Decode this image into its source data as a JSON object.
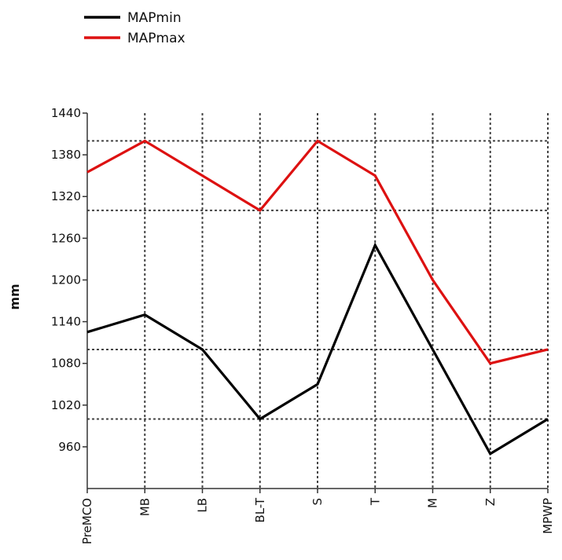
{
  "chart_data": {
    "type": "line",
    "title": "",
    "xlabel": "",
    "ylabel": "mm",
    "categories": [
      "PreMCO",
      "MB",
      "LB",
      "BL-T",
      "S",
      "T",
      "M",
      "Z",
      "MPWP"
    ],
    "ylim": [
      900,
      1440
    ],
    "yticks": [
      960,
      1020,
      1080,
      1140,
      1200,
      1260,
      1320,
      1380,
      1440
    ],
    "major_gridlines_y": [
      1000,
      1100,
      1300,
      1400
    ],
    "grid": true,
    "legend_position": "top-left",
    "series": [
      {
        "name": "MAPmin",
        "color": "#000000",
        "values": [
          1125,
          1150,
          1100,
          1000,
          1050,
          1250,
          1100,
          950,
          1000
        ]
      },
      {
        "name": "MAPmax",
        "color": "#dd1111",
        "values": [
          1355,
          1400,
          1350,
          1300,
          1400,
          1350,
          1200,
          1080,
          1100
        ]
      }
    ]
  }
}
